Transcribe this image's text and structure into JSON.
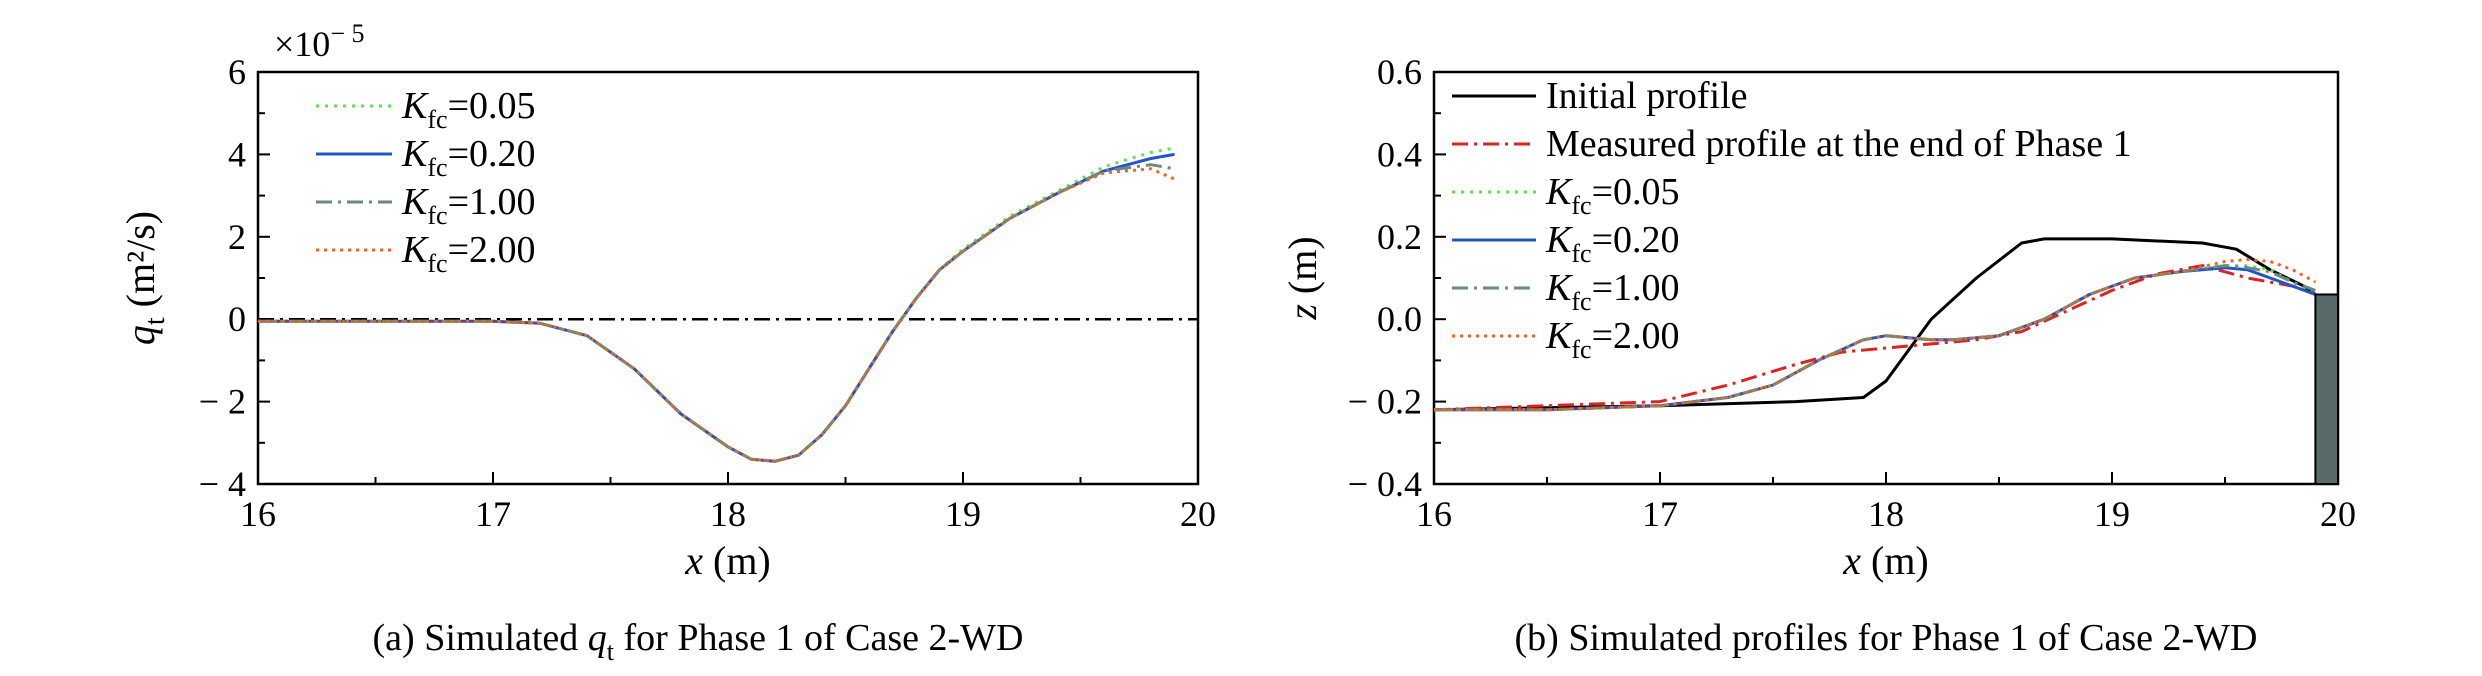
{
  "chart_data": [
    {
      "type": "line",
      "panel": "a",
      "caption_text": "(a) Simulated q_t for Phase 1 of Case 2-WD",
      "caption": {
        "pre": "(a) Simulated ",
        "sym": "q",
        "sub": "t",
        "post": "  for Phase 1 of Case 2-WD"
      },
      "xlabel": {
        "sym": "x",
        "unit": " (m)"
      },
      "ylabel": {
        "sym": "q",
        "sub": "t",
        "unit": " (m²/s)"
      },
      "multiplier": {
        "base": "×10",
        "exp": "− 5"
      },
      "xlim": [
        16,
        20
      ],
      "ylim": [
        -4,
        6
      ],
      "xticks": [
        "16",
        "17",
        "18",
        "19",
        "20"
      ],
      "yticks": [
        "− 4",
        "− 2",
        "0",
        "2",
        "4",
        "6"
      ],
      "reference_line": {
        "y": 0,
        "style": "dash-dot",
        "color": "#000000"
      },
      "series": [
        {
          "sym": "K",
          "sub": "fc",
          "value": "=0.05",
          "color": "#66dd55",
          "dash": "3,6",
          "x": [
            16,
            16.5,
            17,
            17.2,
            17.4,
            17.6,
            17.8,
            18,
            18.1,
            18.2,
            18.3,
            18.4,
            18.5,
            18.6,
            18.7,
            18.8,
            18.9,
            19,
            19.2,
            19.4,
            19.6,
            19.8,
            19.9
          ],
          "y": [
            -0.05,
            -0.05,
            -0.05,
            -0.1,
            -0.4,
            -1.2,
            -2.3,
            -3.1,
            -3.4,
            -3.45,
            -3.3,
            -2.8,
            -2.1,
            -1.2,
            -0.3,
            0.5,
            1.2,
            1.7,
            2.5,
            3.1,
            3.7,
            4.05,
            4.15
          ]
        },
        {
          "sym": "K",
          "sub": "fc",
          "value": "=0.20",
          "color": "#2255cc",
          "dash": "",
          "x": [
            16,
            16.5,
            17,
            17.2,
            17.4,
            17.6,
            17.8,
            18,
            18.1,
            18.2,
            18.3,
            18.4,
            18.5,
            18.6,
            18.7,
            18.8,
            18.9,
            19,
            19.2,
            19.4,
            19.6,
            19.8,
            19.9
          ],
          "y": [
            -0.05,
            -0.05,
            -0.05,
            -0.1,
            -0.4,
            -1.2,
            -2.3,
            -3.1,
            -3.4,
            -3.45,
            -3.3,
            -2.8,
            -2.1,
            -1.2,
            -0.3,
            0.5,
            1.2,
            1.65,
            2.45,
            3.05,
            3.6,
            3.9,
            4.0
          ]
        },
        {
          "sym": "K",
          "sub": "fc",
          "value": "=1.00",
          "color": "#6a8a7a",
          "dash": "16,6,3,6",
          "x": [
            16,
            16.5,
            17,
            17.2,
            17.4,
            17.6,
            17.8,
            18,
            18.1,
            18.2,
            18.3,
            18.4,
            18.5,
            18.6,
            18.7,
            18.8,
            18.9,
            19,
            19.2,
            19.4,
            19.6,
            19.8,
            19.9
          ],
          "y": [
            -0.05,
            -0.05,
            -0.05,
            -0.1,
            -0.4,
            -1.2,
            -2.3,
            -3.1,
            -3.4,
            -3.45,
            -3.3,
            -2.8,
            -2.1,
            -1.2,
            -0.3,
            0.5,
            1.2,
            1.65,
            2.45,
            3.05,
            3.6,
            3.75,
            3.65
          ]
        },
        {
          "sym": "K",
          "sub": "fc",
          "value": "=2.00",
          "color": "#ee6622",
          "dash": "3,5",
          "x": [
            16,
            16.5,
            17,
            17.2,
            17.4,
            17.6,
            17.8,
            18,
            18.1,
            18.2,
            18.3,
            18.4,
            18.5,
            18.6,
            18.7,
            18.8,
            18.9,
            19,
            19.2,
            19.4,
            19.6,
            19.8,
            19.9
          ],
          "y": [
            -0.05,
            -0.05,
            -0.05,
            -0.1,
            -0.4,
            -1.2,
            -2.3,
            -3.1,
            -3.4,
            -3.45,
            -3.3,
            -2.8,
            -2.1,
            -1.2,
            -0.3,
            0.5,
            1.2,
            1.65,
            2.45,
            3.05,
            3.55,
            3.65,
            3.4
          ]
        }
      ]
    },
    {
      "type": "line",
      "panel": "b",
      "caption_text": "(b) Simulated profiles for Phase 1 of Case 2-WD",
      "caption": {
        "pre": "(b) Simulated profiles for Phase 1 of Case 2-WD"
      },
      "xlabel": {
        "sym": "x",
        "unit": " (m)"
      },
      "ylabel": {
        "sym": "z",
        "unit": " (m)"
      },
      "xlim": [
        16,
        20
      ],
      "ylim": [
        -0.4,
        0.6
      ],
      "xticks": [
        "16",
        "17",
        "18",
        "19",
        "20"
      ],
      "yticks": [
        "− 0.4",
        "− 0.2",
        "0.0",
        "0.2",
        "0.4",
        "0.6"
      ],
      "structure": {
        "x_start": 19.9,
        "x_end": 20.0,
        "top": 0.06,
        "color": "#5a6a6a"
      },
      "series": [
        {
          "name": "Initial profile",
          "color": "#000000",
          "dash": "",
          "x": [
            16,
            17,
            17.6,
            17.9,
            18.0,
            18.2,
            18.4,
            18.6,
            18.7,
            19.0,
            19.4,
            19.55,
            19.7,
            19.85,
            19.9
          ],
          "y": [
            -0.22,
            -0.21,
            -0.2,
            -0.19,
            -0.15,
            0.0,
            0.1,
            0.185,
            0.195,
            0.195,
            0.185,
            0.17,
            0.12,
            0.08,
            0.06
          ]
        },
        {
          "name": "Measured profile at the end of Phase 1",
          "color": "#dd2222",
          "dash": "16,6,3,6",
          "x": [
            16,
            17,
            17.3,
            17.6,
            17.8,
            18.0,
            18.2,
            18.4,
            18.6,
            18.8,
            19.0,
            19.2,
            19.4,
            19.6,
            19.8,
            19.9
          ],
          "y": [
            -0.22,
            -0.2,
            -0.16,
            -0.11,
            -0.08,
            -0.07,
            -0.06,
            -0.05,
            -0.03,
            0.02,
            0.07,
            0.11,
            0.13,
            0.1,
            0.08,
            0.06
          ]
        },
        {
          "sym": "K",
          "sub": "fc",
          "value": "=0.05",
          "color": "#66dd55",
          "dash": "3,6",
          "x": [
            16,
            16.5,
            17,
            17.3,
            17.5,
            17.7,
            17.9,
            18.0,
            18.1,
            18.2,
            18.3,
            18.5,
            18.7,
            18.9,
            19.1,
            19.3,
            19.5,
            19.6,
            19.7,
            19.8,
            19.9
          ],
          "y": [
            -0.22,
            -0.22,
            -0.21,
            -0.19,
            -0.16,
            -0.1,
            -0.05,
            -0.04,
            -0.045,
            -0.05,
            -0.05,
            -0.04,
            0.0,
            0.06,
            0.1,
            0.115,
            0.13,
            0.13,
            0.12,
            0.09,
            0.06
          ]
        },
        {
          "sym": "K",
          "sub": "fc",
          "value": "=0.20",
          "color": "#2255cc",
          "dash": "",
          "x": [
            16,
            16.5,
            17,
            17.3,
            17.5,
            17.7,
            17.9,
            18.0,
            18.1,
            18.2,
            18.3,
            18.5,
            18.7,
            18.9,
            19.1,
            19.3,
            19.5,
            19.6,
            19.7,
            19.8,
            19.9
          ],
          "y": [
            -0.22,
            -0.22,
            -0.21,
            -0.19,
            -0.16,
            -0.1,
            -0.05,
            -0.04,
            -0.045,
            -0.05,
            -0.05,
            -0.04,
            0.0,
            0.06,
            0.1,
            0.115,
            0.125,
            0.12,
            0.1,
            0.08,
            0.06
          ]
        },
        {
          "sym": "K",
          "sub": "fc",
          "value": "=1.00",
          "color": "#6a8a7a",
          "dash": "16,6,3,6",
          "x": [
            16,
            16.5,
            17,
            17.3,
            17.5,
            17.7,
            17.9,
            18.0,
            18.1,
            18.2,
            18.3,
            18.5,
            18.7,
            18.9,
            19.1,
            19.3,
            19.5,
            19.6,
            19.7,
            19.8,
            19.9
          ],
          "y": [
            -0.22,
            -0.22,
            -0.21,
            -0.19,
            -0.16,
            -0.1,
            -0.05,
            -0.04,
            -0.045,
            -0.05,
            -0.05,
            -0.04,
            0.0,
            0.06,
            0.1,
            0.115,
            0.13,
            0.125,
            0.115,
            0.09,
            0.07
          ]
        },
        {
          "sym": "K",
          "sub": "fc",
          "value": "=2.00",
          "color": "#ee6622",
          "dash": "3,5",
          "x": [
            16,
            16.5,
            17,
            17.3,
            17.5,
            17.7,
            17.9,
            18.0,
            18.1,
            18.2,
            18.3,
            18.5,
            18.7,
            18.9,
            19.1,
            19.3,
            19.5,
            19.6,
            19.7,
            19.8,
            19.9
          ],
          "y": [
            -0.22,
            -0.22,
            -0.21,
            -0.19,
            -0.16,
            -0.1,
            -0.05,
            -0.04,
            -0.045,
            -0.05,
            -0.05,
            -0.04,
            0.0,
            0.06,
            0.1,
            0.115,
            0.14,
            0.145,
            0.14,
            0.12,
            0.09
          ]
        }
      ]
    }
  ]
}
